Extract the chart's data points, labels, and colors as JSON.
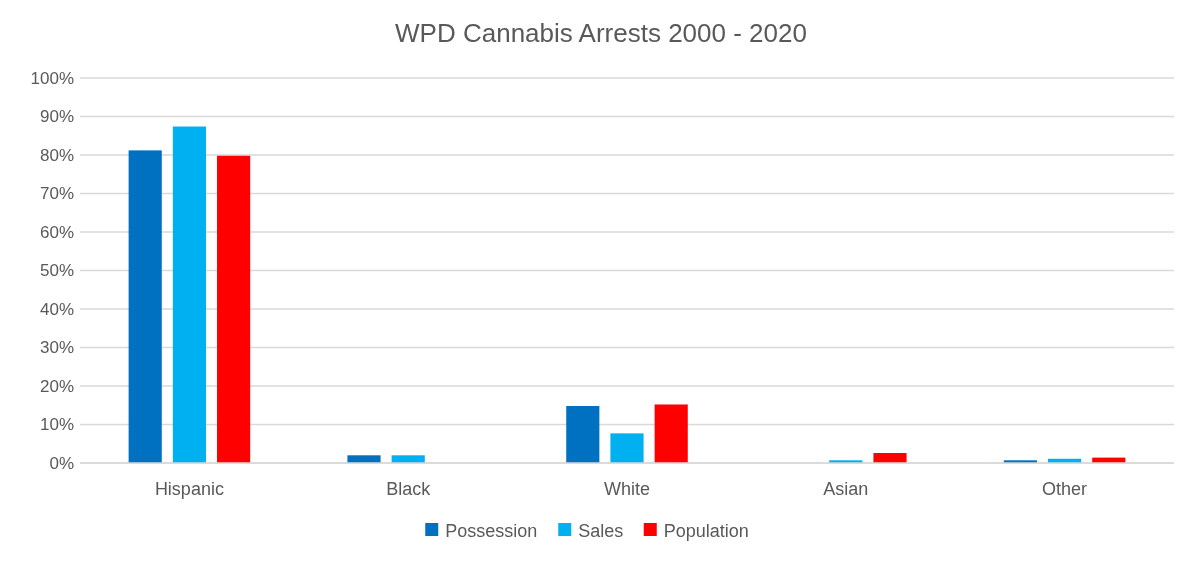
{
  "chart_data": {
    "type": "bar",
    "title": "WPD Cannabis Arrests 2000 - 2020",
    "categories": [
      "Hispanic",
      "Black",
      "White",
      "Asian",
      "Other"
    ],
    "series": [
      {
        "name": "Possession",
        "color": "#0070c0",
        "values": [
          81.2,
          2.0,
          14.8,
          0,
          0.7
        ]
      },
      {
        "name": "Sales",
        "color": "#00b0f0",
        "values": [
          87.4,
          2.0,
          7.7,
          0.7,
          1.1
        ]
      },
      {
        "name": "Population",
        "color": "#ff0000",
        "values": [
          79.8,
          0,
          15.2,
          2.6,
          1.4
        ]
      }
    ],
    "ylim": [
      0,
      100
    ],
    "yticks": [
      {
        "value": 0,
        "label": "0%"
      },
      {
        "value": 10,
        "label": "10%"
      },
      {
        "value": 20,
        "label": "20%"
      },
      {
        "value": 30,
        "label": "30%"
      },
      {
        "value": 40,
        "label": "40%"
      },
      {
        "value": 50,
        "label": "50%"
      },
      {
        "value": 60,
        "label": "60%"
      },
      {
        "value": 70,
        "label": "70%"
      },
      {
        "value": 80,
        "label": "80%"
      },
      {
        "value": 90,
        "label": "90%"
      },
      {
        "value": 100,
        "label": "100%"
      }
    ],
    "grid": "y",
    "legend": "bottom"
  }
}
